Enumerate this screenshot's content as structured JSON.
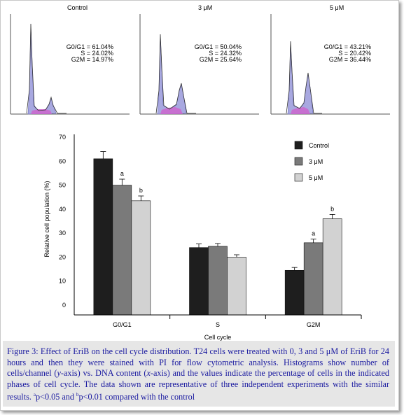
{
  "histograms": [
    {
      "title": "Control",
      "stats": [
        "G0/G1 = 61.04%",
        "S = 24.02%",
        "G2M = 14.97%"
      ]
    },
    {
      "title": "3 μM",
      "stats": [
        "G0/G1 = 50.04%",
        "S = 24.32%",
        "G2M = 25.64%"
      ]
    },
    {
      "title": "5 μM",
      "stats": [
        "G0/G1 = 43.21%",
        "S = 20.42%",
        "G2M = 36.44%"
      ]
    }
  ],
  "chart_data": {
    "type": "bar",
    "categories": [
      "G0/G1",
      "S",
      "G2M"
    ],
    "xlabel": "Cell cycle",
    "ylabel": "Relative cell population (%)",
    "ylim": [
      0,
      70
    ],
    "yticks": [
      0,
      10,
      20,
      30,
      40,
      50,
      60,
      70
    ],
    "legend_position": "top-right",
    "series": [
      {
        "name": "Control",
        "color": "#1e1e1e",
        "values": [
          61,
          24,
          14.5
        ],
        "errors": [
          3,
          1.5,
          1.2
        ],
        "labels": [
          "",
          "",
          ""
        ]
      },
      {
        "name": "3 μM",
        "color": "#7a7a7a",
        "values": [
          50,
          24.5,
          26
        ],
        "errors": [
          2.5,
          1.2,
          1.5
        ],
        "labels": [
          "a",
          "",
          "a"
        ]
      },
      {
        "name": "5 μM",
        "color": "#d2d2d2",
        "values": [
          43.5,
          20,
          36
        ],
        "errors": [
          2,
          1,
          1.8
        ],
        "labels": [
          "b",
          "",
          "b"
        ]
      }
    ]
  },
  "caption": {
    "part1": "Figure 3: Effect of EriB on the cell cycle distribution. T24 cells were treated with 0, 3 and 5 μM of EriB for 24 hours and then they were stained with PI for flow cytometric analysis. Histograms show number of cells/channel (",
    "y_italic": "y",
    "part2": "-axis) vs. DNA content (",
    "x_italic": "x",
    "part3": "-axis) and the values indicate the percentage of cells in the indicated phases of cell cycle. The data shown are representative of three independent experiments with the similar results. ",
    "sup_a": "a",
    "part4": "p<0.05 and ",
    "sup_b": "b",
    "part5": "p<0.01 compared with the control"
  }
}
